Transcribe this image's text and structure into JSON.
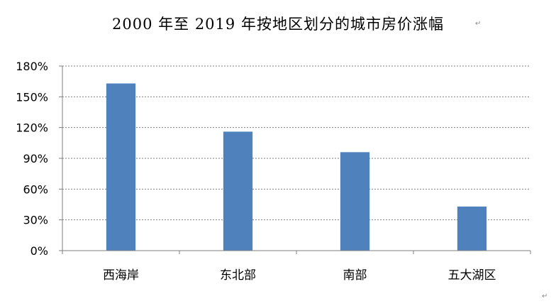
{
  "chart_data": {
    "type": "bar",
    "title": "2000 年至 2019 年按地区划分的城市房价涨幅",
    "categories": [
      "西海岸",
      "东北部",
      "南部",
      "五大湖区"
    ],
    "values": [
      163,
      116,
      96,
      43
    ],
    "value_unit": "%",
    "ylim": [
      0,
      180
    ],
    "yticks": [
      0,
      30,
      60,
      90,
      120,
      150,
      180
    ],
    "ytick_labels": [
      "0%",
      "30%",
      "60%",
      "90%",
      "120%",
      "150%",
      "180%"
    ],
    "xlabel": "",
    "ylabel": "",
    "grid": true,
    "legend": "none",
    "bar_color": "#4f81bd"
  }
}
